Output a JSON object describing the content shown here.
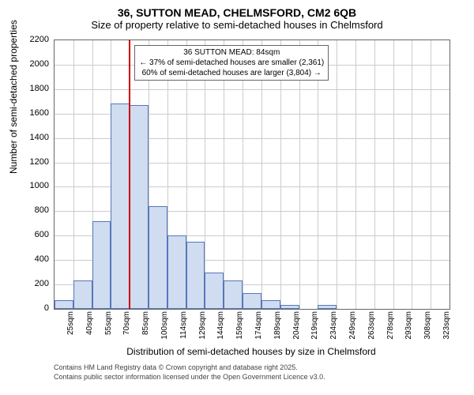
{
  "title_line1": "36, SUTTON MEAD, CHELMSFORD, CM2 6QB",
  "title_line2": "Size of property relative to semi-detached houses in Chelmsford",
  "y_axis": {
    "label": "Number of semi-detached properties",
    "min": 0,
    "max": 2200,
    "step": 200,
    "label_fontsize": 12,
    "tick_fontsize": 11
  },
  "x_axis": {
    "label": "Distribution of semi-detached houses by size in Chelmsford",
    "categories": [
      "25sqm",
      "40sqm",
      "55sqm",
      "70sqm",
      "85sqm",
      "100sqm",
      "114sqm",
      "129sqm",
      "144sqm",
      "159sqm",
      "174sqm",
      "189sqm",
      "204sqm",
      "219sqm",
      "234sqm",
      "249sqm",
      "263sqm",
      "278sqm",
      "293sqm",
      "308sqm",
      "323sqm"
    ],
    "label_fontsize": 12,
    "tick_fontsize": 10
  },
  "histogram": {
    "type": "histogram",
    "values": [
      70,
      230,
      720,
      1680,
      1670,
      840,
      600,
      550,
      300,
      230,
      130,
      70,
      30,
      0,
      30,
      0,
      0,
      0,
      0,
      0,
      0
    ],
    "bar_fill": "#d0dcf0",
    "bar_border": "#5577bb",
    "bar_width": 1.0
  },
  "marker": {
    "position_index": 4,
    "color": "#cc0000",
    "width": 2
  },
  "annotation": {
    "line1": "36 SUTTON MEAD: 84sqm",
    "line2": "← 37% of semi-detached houses are smaller (2,361)",
    "line3": "60% of semi-detached houses are larger (3,804) →",
    "fontsize": 10,
    "background": "#ffffff",
    "border": "#666666"
  },
  "grid": {
    "color": "#cccccc",
    "border_color": "#666666"
  },
  "background_color": "#ffffff",
  "credits": {
    "line1": "Contains HM Land Registry data © Crown copyright and database right 2025.",
    "line2": "Contains public sector information licensed under the Open Government Licence v3.0.",
    "fontsize": 9,
    "color": "#444444"
  }
}
